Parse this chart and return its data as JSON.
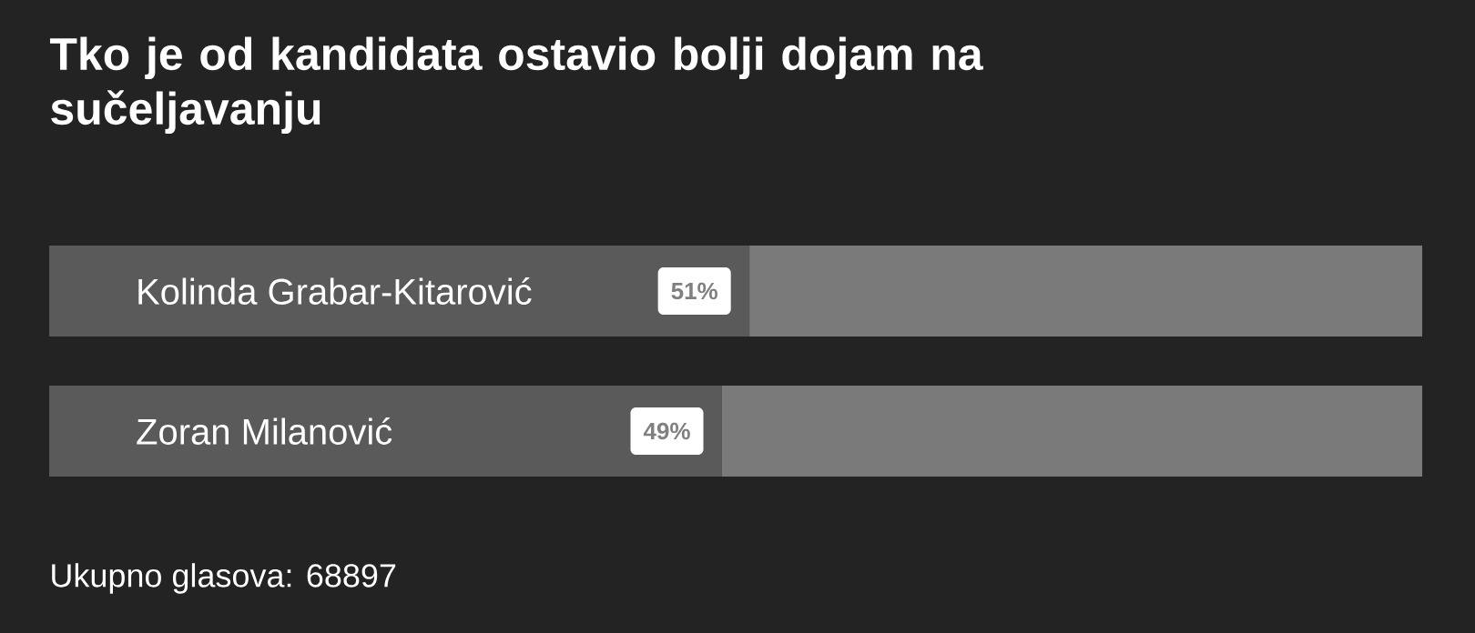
{
  "chart_data": {
    "type": "bar",
    "orientation": "horizontal",
    "stacked": true,
    "title": "Tko je od kandidata ostavio bolji dojam na sučeljavanju",
    "categories": [
      "Kolinda Grabar-Kitarović",
      "Zoran Milanović"
    ],
    "series": [
      {
        "color": "#5a5a5a",
        "values": [
          51,
          49
        ],
        "value_labels": [
          "51%",
          "49%"
        ]
      },
      {
        "color": "#7a7a7a",
        "values": [
          49,
          51
        ]
      }
    ],
    "annotations": [
      "Ukupno glasova: 68897"
    ]
  }
}
